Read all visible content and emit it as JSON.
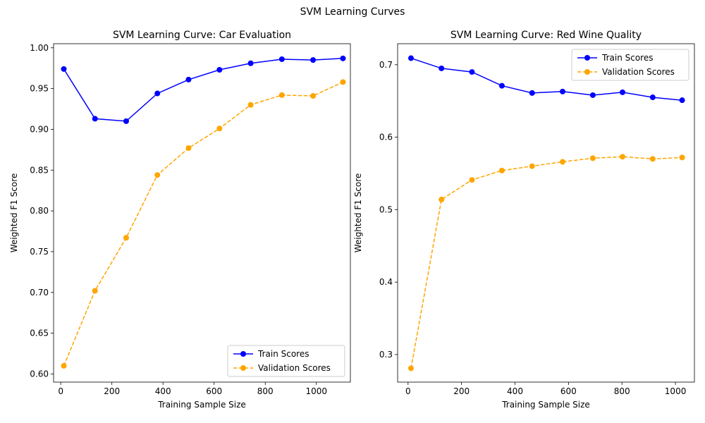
{
  "figure": {
    "suptitle": "SVM Learning Curves"
  },
  "chart_data": [
    {
      "type": "line",
      "title": "SVM Learning Curve: Car Evaluation",
      "xlabel": "Training Sample Size",
      "ylabel": "Weighted F1 Score",
      "xlim": [
        -28,
        1133
      ],
      "ylim": [
        0.59,
        1.005
      ],
      "xticks": [
        0,
        200,
        400,
        600,
        800,
        1000
      ],
      "yticks": [
        0.6,
        0.65,
        0.7,
        0.75,
        0.8,
        0.85,
        0.9,
        0.95,
        1.0
      ],
      "ytick_decimals": 2,
      "legend": "lower-right",
      "x": [
        12,
        134,
        256,
        378,
        500,
        621,
        743,
        865,
        987,
        1104
      ],
      "series": [
        {
          "name": "Train Scores",
          "color": "#0000ff",
          "linestyle": "solid",
          "values": [
            0.974,
            0.913,
            0.91,
            0.944,
            0.961,
            0.973,
            0.981,
            0.986,
            0.985,
            0.987
          ]
        },
        {
          "name": "Validation Scores",
          "color": "#ffa500",
          "linestyle": "dashed",
          "values": [
            0.61,
            0.702,
            0.767,
            0.844,
            0.877,
            0.901,
            0.93,
            0.942,
            0.941,
            0.958
          ]
        }
      ]
    },
    {
      "type": "line",
      "title": "SVM Learning Curve: Red Wine Quality",
      "xlabel": "Training Sample Size",
      "ylabel": "Weighted F1 Score",
      "xlim": [
        -39,
        1071
      ],
      "ylim": [
        0.262,
        0.729
      ],
      "xticks": [
        0,
        200,
        400,
        600,
        800,
        1000
      ],
      "yticks": [
        0.3,
        0.4,
        0.5,
        0.6,
        0.7
      ],
      "ytick_decimals": 1,
      "legend": "upper-right",
      "x": [
        11,
        125,
        239,
        351,
        464,
        578,
        691,
        802,
        915,
        1025
      ],
      "series": [
        {
          "name": "Train Scores",
          "color": "#0000ff",
          "linestyle": "solid",
          "values": [
            0.709,
            0.695,
            0.69,
            0.671,
            0.661,
            0.663,
            0.658,
            0.662,
            0.655,
            0.651
          ]
        },
        {
          "name": "Validation Scores",
          "color": "#ffa500",
          "linestyle": "dashed",
          "values": [
            0.281,
            0.514,
            0.541,
            0.554,
            0.56,
            0.566,
            0.571,
            0.573,
            0.57,
            0.572
          ]
        }
      ]
    }
  ]
}
